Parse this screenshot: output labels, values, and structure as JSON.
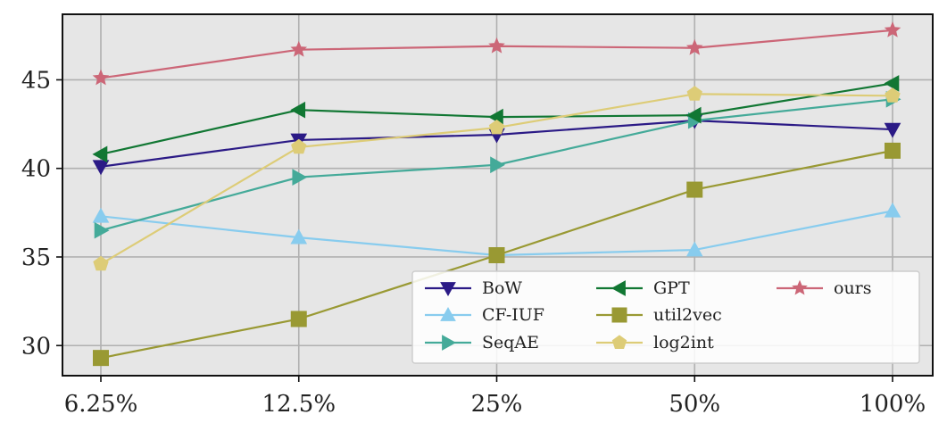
{
  "chart_data": {
    "type": "line",
    "title": "",
    "xlabel": "",
    "ylabel": "",
    "categories": [
      "6.25%",
      "12.5%",
      "25%",
      "50%",
      "100%"
    ],
    "y_ticks": [
      "30",
      "35",
      "40",
      "45"
    ],
    "ylim": [
      28.3,
      48.7
    ],
    "grid": true,
    "legend_position": "bottom-right",
    "legend_columns": 3,
    "series": [
      {
        "name": "BoW",
        "color": "#2b1a86",
        "marker": "triangle-down",
        "values": [
          40.1,
          41.6,
          41.9,
          42.7,
          42.2
        ]
      },
      {
        "name": "CF-IUF",
        "color": "#88ccee",
        "marker": "triangle-up",
        "values": [
          37.3,
          36.1,
          35.1,
          35.4,
          37.6
        ]
      },
      {
        "name": "SeqAE",
        "color": "#44aa99",
        "marker": "triangle-right",
        "values": [
          36.5,
          39.5,
          40.2,
          42.7,
          43.9
        ]
      },
      {
        "name": "GPT",
        "color": "#117733",
        "marker": "triangle-left",
        "values": [
          40.8,
          43.3,
          42.9,
          43.0,
          44.8
        ]
      },
      {
        "name": "util2vec",
        "color": "#999933",
        "marker": "square",
        "values": [
          29.3,
          31.5,
          35.1,
          38.8,
          41.0
        ]
      },
      {
        "name": "log2int",
        "color": "#ddcc77",
        "marker": "pentagon",
        "values": [
          34.6,
          41.2,
          42.3,
          44.2,
          44.1
        ]
      },
      {
        "name": "ours",
        "color": "#cc6677",
        "marker": "star",
        "values": [
          45.1,
          46.7,
          46.9,
          46.8,
          47.8
        ]
      }
    ]
  }
}
